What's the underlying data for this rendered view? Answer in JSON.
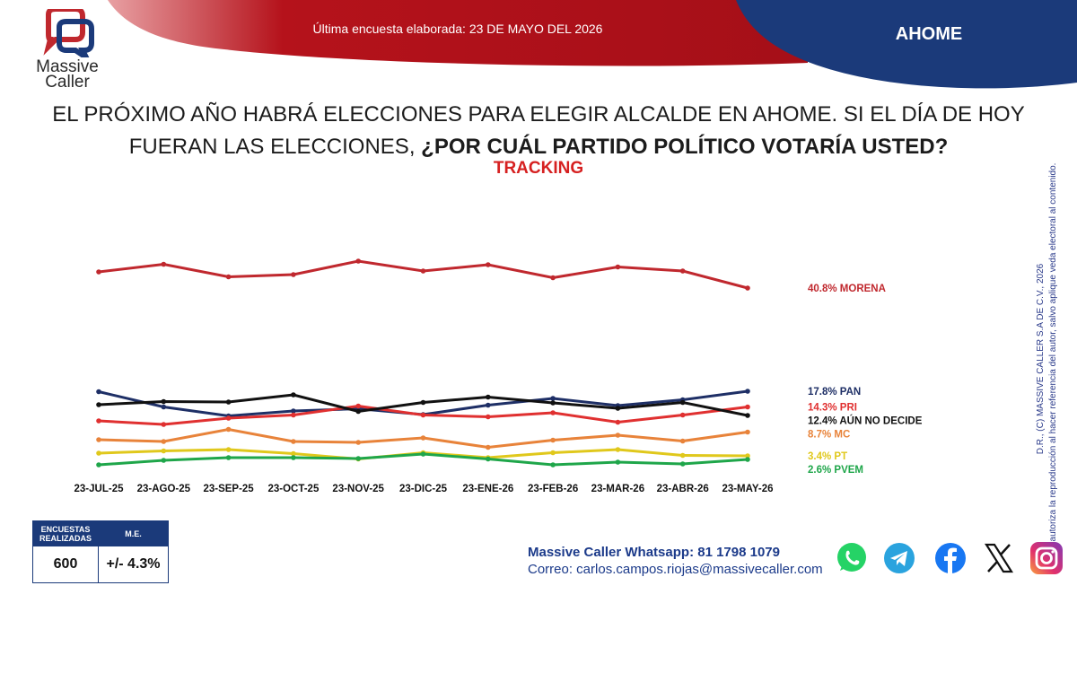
{
  "header": {
    "logo_name": "Massive",
    "logo_name2": "Caller",
    "survey_date": "Última encuesta elaborada: 23 DE MAYO DEL 2026",
    "region": "AHOME"
  },
  "question": {
    "text": "EL PRÓXIMO AÑO HABRÁ ELECCIONES PARA ELEGIR ALCALDE EN AHOME. SI EL DÍA DE HOY FUERAN LAS ELECCIONES,",
    "emphasis": "¿POR CUÁL PARTIDO POLÍTICO VOTARÍA USTED?",
    "subtitle": "TRACKING"
  },
  "chart_data": {
    "type": "line",
    "x": [
      "23-JUL-25",
      "23-AGO-25",
      "23-SEP-25",
      "23-OCT-25",
      "23-NOV-25",
      "23-DIC-25",
      "23-ENE-26",
      "23-FEB-26",
      "23-MAR-26",
      "23-ABR-26",
      "23-MAY-26"
    ],
    "series": [
      {
        "name": "MORENA",
        "label": "40.8% MORENA",
        "color": "#c0282e",
        "values": [
          44.4,
          46.1,
          43.3,
          43.8,
          46.8,
          44.6,
          46.0,
          43.1,
          45.5,
          44.6,
          40.8
        ]
      },
      {
        "name": "PAN",
        "label": "17.8% PAN",
        "color": "#1e2f66",
        "values": [
          17.7,
          14.3,
          12.3,
          13.4,
          13.9,
          12.6,
          14.7,
          16.2,
          14.6,
          15.9,
          17.8
        ]
      },
      {
        "name": "PRI",
        "label": "14.3% PRI",
        "color": "#e03030",
        "values": [
          11.2,
          10.4,
          11.8,
          12.5,
          14.5,
          12.5,
          12.1,
          13.0,
          10.9,
          12.5,
          14.3
        ]
      },
      {
        "name": "AÚN NO DECIDE",
        "label": "12.4% AÚN NO DECIDE",
        "color": "#111111",
        "values": [
          14.8,
          15.5,
          15.4,
          17.0,
          13.3,
          15.3,
          16.5,
          15.2,
          14.0,
          15.3,
          12.4
        ]
      },
      {
        "name": "MC",
        "label": "8.7% MC",
        "color": "#e8833a",
        "values": [
          7.0,
          6.6,
          9.3,
          6.6,
          6.4,
          7.4,
          5.3,
          6.9,
          8.0,
          6.7,
          8.7
        ]
      },
      {
        "name": "PT",
        "label": "3.4% PT",
        "color": "#e0c81c",
        "values": [
          4.0,
          4.5,
          4.8,
          3.9,
          2.7,
          4.1,
          3.0,
          4.1,
          4.8,
          3.5,
          3.4
        ]
      },
      {
        "name": "PVEM",
        "label": "2.6% PVEM",
        "color": "#1fa64a",
        "values": [
          1.4,
          2.4,
          3.0,
          3.0,
          2.8,
          3.8,
          2.7,
          1.4,
          2.0,
          1.6,
          2.6
        ]
      }
    ],
    "ylim": [
      0,
      50
    ],
    "grid": false,
    "legend": "right"
  },
  "stats": {
    "col1_header_line1": "ENCUESTAS",
    "col1_header_line2": "REALIZADAS",
    "col2_header": "M.E.",
    "surveys": "600",
    "margin_error": "+/- 4.3%"
  },
  "contact": {
    "whatsapp": "Massive Caller Whatsapp: 81 1798 1079",
    "email": "Correo: carlos.campos.riojas@massivecaller.com"
  },
  "copyright": {
    "line1": "D.R., (C) MASSIVE CALLER S.A DE C.V., 2026",
    "line2": "Se autoriza la reproducción al hacer referencia del autor, salvo aplique veda electoral al contenido."
  },
  "social": [
    "whatsapp-icon",
    "telegram-icon",
    "facebook-icon",
    "x-icon",
    "instagram-icon"
  ],
  "colors": {
    "banner_red": "#b5121b",
    "banner_blue": "#1b3a7a",
    "accent_red": "#d62020"
  }
}
